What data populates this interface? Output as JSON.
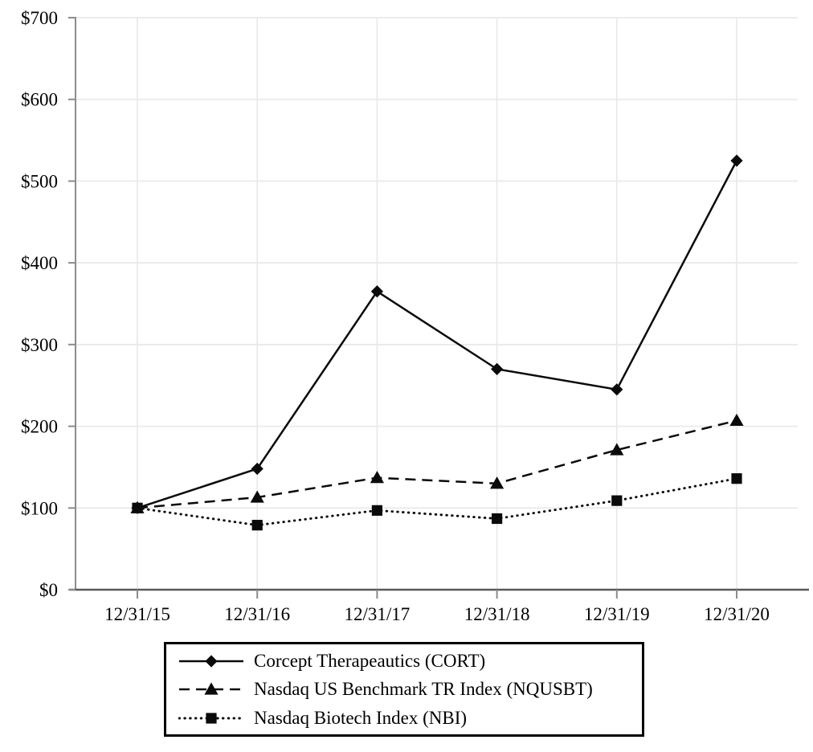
{
  "chart_data": {
    "type": "line",
    "title": "",
    "xlabel": "",
    "ylabel": "",
    "categories": [
      "12/31/15",
      "12/31/16",
      "12/31/17",
      "12/31/18",
      "12/31/19",
      "12/31/20"
    ],
    "y_tick_labels": [
      "$0",
      "$100",
      "$200",
      "$300",
      "$400",
      "$500",
      "$600",
      "$700"
    ],
    "ylim": [
      0,
      700
    ],
    "y_tick_step": 100,
    "grid": true,
    "legend_position": "bottom",
    "series": [
      {
        "name": "Corcept Therapeautics (CORT)",
        "marker": "diamond",
        "line_style": "solid",
        "color": "#000000",
        "values": [
          100,
          148,
          365,
          270,
          245,
          525
        ]
      },
      {
        "name": "Nasdaq US Benchmark TR Index (NQUSBT)",
        "marker": "triangle",
        "line_style": "dashed",
        "color": "#000000",
        "values": [
          100,
          113,
          137,
          130,
          171,
          207
        ]
      },
      {
        "name": "Nasdaq Biotech Index (NBI)",
        "marker": "square",
        "line_style": "dotted",
        "color": "#000000",
        "values": [
          100,
          79,
          97,
          87,
          109,
          136
        ]
      }
    ],
    "colors": {
      "series": "#0a0a0a",
      "gridline": "#e9e9e9",
      "y_axis": "#8c8c8c",
      "x_axis": "#595959",
      "tick": "#8c8c8c",
      "label": "#000000"
    }
  }
}
